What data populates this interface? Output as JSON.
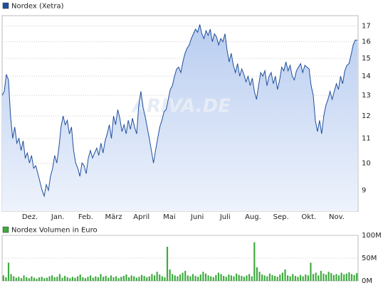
{
  "chart_data": [
    {
      "type": "line",
      "log_scale": true,
      "grid": true,
      "watermark": "ARIVA.DE",
      "series": [
        {
          "name": "Nordex (Xetra)",
          "color": "#1f4e9c",
          "fill": "#cddcf5",
          "values": [
            13.0,
            13.2,
            14.1,
            13.8,
            12.0,
            11.0,
            11.5,
            10.8,
            11.0,
            10.5,
            10.9,
            10.2,
            10.4,
            10.0,
            10.3,
            9.8,
            9.9,
            9.6,
            9.3,
            9.0,
            8.8,
            9.2,
            9.0,
            9.5,
            9.8,
            10.3,
            10.0,
            10.6,
            11.5,
            12.0,
            11.6,
            11.8,
            11.2,
            11.5,
            10.5,
            10.0,
            9.8,
            9.5,
            10.0,
            9.9,
            9.6,
            10.2,
            10.5,
            10.2,
            10.4,
            10.6,
            10.3,
            10.8,
            10.4,
            10.9,
            11.2,
            11.6,
            11.0,
            12.0,
            11.6,
            12.3,
            11.9,
            11.3,
            11.6,
            11.2,
            11.8,
            11.4,
            11.9,
            11.5,
            11.2,
            12.5,
            13.2,
            12.4,
            12.0,
            11.5,
            11.0,
            10.5,
            10.0,
            10.5,
            11.0,
            11.5,
            11.8,
            12.2,
            12.3,
            12.8,
            13.3,
            13.5,
            14.0,
            14.4,
            14.5,
            14.2,
            14.8,
            15.3,
            15.6,
            15.8,
            16.2,
            16.5,
            16.8,
            16.6,
            17.1,
            16.5,
            16.2,
            16.7,
            16.4,
            16.8,
            16.0,
            16.5,
            16.3,
            15.8,
            16.2,
            16.0,
            16.5,
            15.5,
            14.8,
            15.3,
            14.6,
            14.2,
            14.7,
            14.0,
            14.4,
            14.1,
            13.7,
            14.0,
            13.5,
            13.9,
            13.2,
            12.8,
            13.5,
            14.2,
            14.0,
            14.3,
            13.5,
            14.0,
            14.2,
            13.6,
            14.0,
            13.3,
            13.8,
            14.5,
            14.3,
            14.8,
            14.3,
            14.6,
            14.0,
            13.8,
            14.3,
            14.5,
            14.7,
            14.2,
            14.6,
            14.5,
            14.4,
            13.5,
            13.0,
            11.8,
            11.3,
            11.8,
            11.2,
            12.0,
            12.5,
            12.8,
            13.2,
            12.8,
            13.2,
            13.6,
            13.3,
            14.0,
            13.6,
            14.3,
            14.6,
            14.7,
            15.2,
            15.8,
            16.1,
            16.1
          ]
        }
      ],
      "xtick_labels": [
        "Dez.",
        "Jan.",
        "Feb.",
        "März",
        "April",
        "Mai",
        "Juni",
        "Juli",
        "Aug.",
        "Sep.",
        "Okt.",
        "Nov."
      ],
      "ylim": [
        8.3,
        17.7
      ],
      "yticks": [
        9,
        10,
        11,
        12,
        13,
        14,
        15,
        16,
        17
      ]
    },
    {
      "type": "bar",
      "grid": true,
      "series": [
        {
          "name": "Nordex Volumen in Euro",
          "color": "#3daa3d",
          "values": [
            12,
            8,
            40,
            15,
            10,
            7,
            9,
            6,
            12,
            8,
            6,
            10,
            7,
            5,
            8,
            9,
            6,
            7,
            10,
            12,
            8,
            9,
            15,
            7,
            11,
            8,
            6,
            9,
            7,
            10,
            14,
            8,
            6,
            9,
            12,
            7,
            10,
            8,
            15,
            9,
            11,
            7,
            12,
            8,
            10,
            6,
            9,
            11,
            14,
            8,
            12,
            10,
            7,
            9,
            13,
            11,
            8,
            10,
            15,
            12,
            20,
            14,
            10,
            8,
            75,
            25,
            15,
            12,
            10,
            14,
            18,
            22,
            12,
            10,
            15,
            11,
            9,
            14,
            20,
            16,
            12,
            10,
            8,
            13,
            18,
            15,
            11,
            9,
            14,
            12,
            10,
            16,
            13,
            11,
            9,
            12,
            15,
            10,
            85,
            30,
            20,
            14,
            12,
            10,
            16,
            13,
            11,
            9,
            14,
            18,
            25,
            12,
            10,
            15,
            11,
            9,
            13,
            10,
            14,
            12,
            40,
            15,
            18,
            12,
            22,
            16,
            14,
            20,
            17,
            13,
            15,
            12,
            18,
            14,
            16,
            19,
            15,
            13,
            17
          ]
        }
      ],
      "ylim": [
        0,
        100
      ],
      "yticks": [
        {
          "value": 0,
          "label": "0M"
        },
        {
          "value": 50,
          "label": "50M"
        },
        {
          "value": 100,
          "label": "100M"
        }
      ]
    }
  ]
}
